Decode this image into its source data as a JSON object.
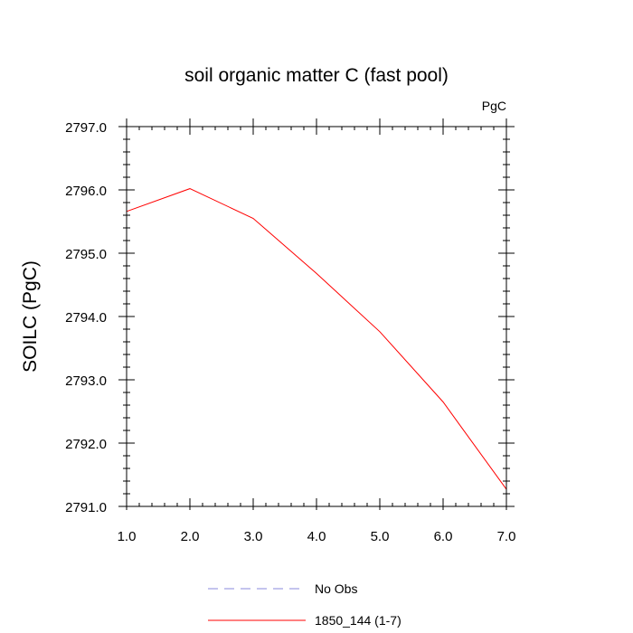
{
  "chart_data": {
    "type": "line",
    "title": "soil organic matter C (fast pool)",
    "units_label": "PgC",
    "ylabel": "SOILC  (PgC)",
    "xlabel": "",
    "xlim": [
      1.0,
      7.0
    ],
    "ylim": [
      2791.0,
      2797.0
    ],
    "x_ticks": [
      "1.0",
      "2.0",
      "3.0",
      "4.0",
      "5.0",
      "6.0",
      "7.0"
    ],
    "y_ticks": [
      "2797.0",
      "2796.0",
      "2795.0",
      "2794.0",
      "2793.0",
      "2792.0",
      "2791.0"
    ],
    "grid": false,
    "legend_position": "bottom-center",
    "series": [
      {
        "name": "1850_144 (1-7)",
        "color": "#ff0000",
        "style": "solid",
        "x": [
          1,
          2,
          3,
          4,
          5,
          6,
          7
        ],
        "y": [
          2795.66,
          2796.02,
          2795.55,
          2794.68,
          2793.76,
          2792.65,
          2791.27
        ]
      }
    ],
    "legend": [
      {
        "name": "No Obs",
        "color": "#8888dd",
        "style": "dashed"
      },
      {
        "name": "1850_144 (1-7)",
        "color": "#ff0000",
        "style": "solid"
      }
    ]
  }
}
